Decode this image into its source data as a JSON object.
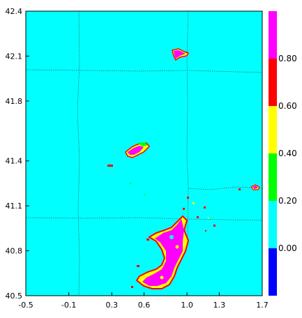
{
  "chart_data": {
    "type": "heatmap",
    "title": "",
    "xlabel": "",
    "ylabel": "",
    "xlim": [
      -0.5,
      1.7
    ],
    "ylim": [
      40.5,
      42.4
    ],
    "x_ticks": [
      "-0.5",
      "-0.1",
      "0.3",
      "0.6",
      "1.0",
      "1.3",
      "1.7"
    ],
    "x_tick_values": [
      -0.5,
      -0.1,
      0.3,
      0.6,
      1.0,
      1.3,
      1.7
    ],
    "y_ticks": [
      "40.5",
      "40.8",
      "41.1",
      "41.4",
      "41.8",
      "42.1",
      "42.4"
    ],
    "y_tick_values": [
      40.5,
      40.8,
      41.1,
      41.4,
      41.8,
      42.1,
      42.4
    ],
    "background_value_range": [
      0.0,
      0.2
    ],
    "colorbar": {
      "bands": [
        {
          "min": -0.2,
          "max": 0.0,
          "color": "#0000ff"
        },
        {
          "min": 0.0,
          "max": 0.2,
          "color": "#00ffff"
        },
        {
          "min": 0.2,
          "max": 0.4,
          "color": "#00ff00"
        },
        {
          "min": 0.4,
          "max": 0.6,
          "color": "#ffff00"
        },
        {
          "min": 0.6,
          "max": 0.8,
          "color": "#ff0000"
        },
        {
          "min": 0.8,
          "max": 1.0,
          "color": "#ff00ff"
        }
      ],
      "labels": [
        "0.00",
        "0.20",
        "0.40",
        "0.60",
        "0.80"
      ],
      "label_values": [
        0.0,
        0.2,
        0.4,
        0.6,
        0.8
      ]
    },
    "high_value_regions": [
      {
        "name": "north",
        "lon": 0.97,
        "lat": 42.13,
        "value": 0.9
      },
      {
        "name": "center",
        "lon": 0.51,
        "lat": 41.42,
        "value": 0.9
      },
      {
        "name": "east",
        "lon": 1.6,
        "lat": 41.17,
        "value": 0.9
      },
      {
        "name": "south",
        "lon": 0.85,
        "lat": 40.75,
        "value": 0.9
      }
    ]
  }
}
